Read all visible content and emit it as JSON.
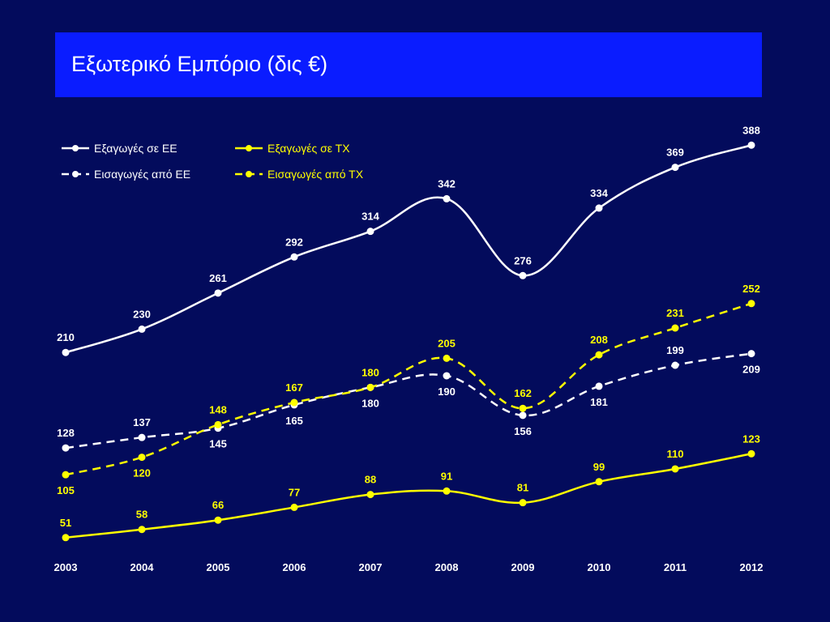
{
  "slide": {
    "title": "Εξωτερικό Εμπόριο (δις €)"
  },
  "chart_data": {
    "type": "line",
    "title": "Εξωτερικό Εμπόριο (δις €)",
    "xlabel": "",
    "ylabel": "",
    "x": [
      "2003",
      "2004",
      "2005",
      "2006",
      "2007",
      "2008",
      "2009",
      "2010",
      "2011",
      "2012"
    ],
    "ylim": [
      30,
      400
    ],
    "grid": false,
    "legend_position": "top-left",
    "series": [
      {
        "name": "Εξαγωγές σε ΕΕ",
        "values": [
          210,
          230,
          261,
          292,
          314,
          342,
          276,
          334,
          369,
          388
        ],
        "color": "#ffffff",
        "dashed": false,
        "label_side": [
          "above",
          "above",
          "above",
          "above",
          "above",
          "above",
          "above",
          "above",
          "above",
          "above"
        ]
      },
      {
        "name": "Εξαγωγές σε ΤΧ",
        "values": [
          51,
          58,
          66,
          77,
          88,
          91,
          81,
          99,
          110,
          123
        ],
        "color": "#ffff00",
        "dashed": false,
        "label_side": [
          "above",
          "above",
          "above",
          "above",
          "above",
          "above",
          "above",
          "above",
          "above",
          "above"
        ]
      },
      {
        "name": "Εισαγωγές από ΕΕ",
        "values": [
          128,
          137,
          145,
          165,
          180,
          190,
          156,
          181,
          199,
          209
        ],
        "color": "#ffffff",
        "dashed": true,
        "label_side": [
          "above",
          "above",
          "below",
          "below",
          "below",
          "below",
          "below",
          "below",
          "above",
          "below"
        ]
      },
      {
        "name": "Εισαγωγές από ΤΧ",
        "values": [
          105,
          120,
          148,
          167,
          180,
          205,
          162,
          208,
          231,
          252
        ],
        "color": "#ffff00",
        "dashed": true,
        "label_side": [
          "below",
          "below",
          "above",
          "above",
          "above",
          "above",
          "above",
          "above",
          "above",
          "above"
        ]
      }
    ]
  }
}
